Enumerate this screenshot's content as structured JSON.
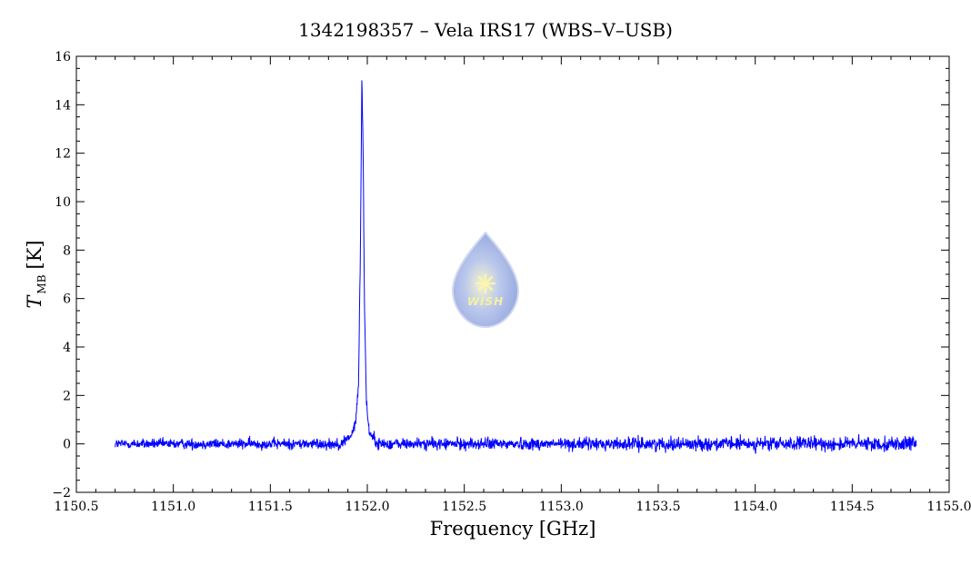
{
  "chart_data": {
    "type": "line",
    "title": "1342198357 – Vela IRS17 (WBS–V–USB)",
    "xlabel": "Frequency [GHz]",
    "ylabel": {
      "symbol": "T",
      "subscript": "MB",
      "unit": "[K]"
    },
    "xlim": [
      1150.5,
      1155.0
    ],
    "ylim": [
      -2,
      16
    ],
    "x_ticks": [
      "1150.5",
      "1151.0",
      "1151.5",
      "1152.0",
      "1152.5",
      "1153.0",
      "1153.5",
      "1154.0",
      "1154.5",
      "1155.0"
    ],
    "y_ticks": [
      "−2",
      "0",
      "2",
      "4",
      "6",
      "8",
      "10",
      "12",
      "14",
      "16"
    ],
    "x_tick_values": [
      1150.5,
      1151.0,
      1151.5,
      1152.0,
      1152.5,
      1153.0,
      1153.5,
      1154.0,
      1154.5,
      1155.0
    ],
    "y_tick_values": [
      -2,
      0,
      2,
      4,
      6,
      8,
      10,
      12,
      14,
      16
    ],
    "grid": false,
    "series": [
      {
        "color": "#0000ff",
        "x_range": [
          1150.7,
          1154.83
        ],
        "baseline": 0.0,
        "noise_rms": [
          0.17,
          0.25
        ],
        "line_peak": {
          "center": 1151.975,
          "peak": 15.1,
          "width_ghz": 0.018
        },
        "line_profile": [
          [
            1151.88,
            0.15
          ],
          [
            1151.92,
            0.35
          ],
          [
            1151.94,
            0.9
          ],
          [
            1151.955,
            2.5
          ],
          [
            1151.965,
            8.5
          ],
          [
            1151.972,
            15.1
          ],
          [
            1151.978,
            12.5
          ],
          [
            1151.985,
            6.0
          ],
          [
            1151.995,
            1.8
          ],
          [
            1152.01,
            0.5
          ],
          [
            1152.04,
            0.2
          ]
        ]
      }
    ]
  },
  "logo": {
    "text": "WISH",
    "color": "#9aaee0"
  }
}
